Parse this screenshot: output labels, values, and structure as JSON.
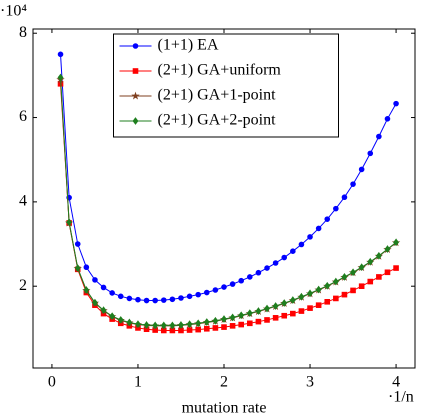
{
  "chart_data": {
    "type": "line",
    "x": [
      0.1,
      0.2,
      0.3,
      0.4,
      0.5,
      0.6,
      0.7,
      0.8,
      0.9,
      1.0,
      1.1,
      1.2,
      1.3,
      1.4,
      1.5,
      1.6,
      1.7,
      1.8,
      1.9,
      2.0,
      2.1,
      2.2,
      2.3,
      2.4,
      2.5,
      2.6,
      2.7,
      2.8,
      2.9,
      3.0,
      3.1,
      3.2,
      3.3,
      3.4,
      3.5,
      3.6,
      3.7,
      3.8,
      3.9,
      4.0
    ],
    "series": [
      {
        "name": "(1+1) EA",
        "color": "#0000ff",
        "marker": "circle",
        "values": [
          7.5,
          4.1,
          3.0,
          2.45,
          2.15,
          1.97,
          1.84,
          1.76,
          1.71,
          1.68,
          1.66,
          1.66,
          1.67,
          1.69,
          1.72,
          1.76,
          1.8,
          1.85,
          1.91,
          1.98,
          2.05,
          2.13,
          2.22,
          2.32,
          2.43,
          2.55,
          2.68,
          2.83,
          2.99,
          3.17,
          3.37,
          3.59,
          3.84,
          4.11,
          4.42,
          4.77,
          5.15,
          5.55,
          5.97,
          6.33
        ]
      },
      {
        "name": "(2+1) GA+uniform",
        "color": "#ff0000",
        "marker": "square",
        "values": [
          6.8,
          3.5,
          2.4,
          1.85,
          1.55,
          1.35,
          1.22,
          1.12,
          1.06,
          1.01,
          0.98,
          0.96,
          0.95,
          0.95,
          0.95,
          0.96,
          0.97,
          0.99,
          1.01,
          1.03,
          1.06,
          1.09,
          1.12,
          1.16,
          1.2,
          1.25,
          1.3,
          1.35,
          1.41,
          1.48,
          1.55,
          1.63,
          1.71,
          1.8,
          1.9,
          2.0,
          2.11,
          2.22,
          2.33,
          2.43
        ]
      },
      {
        "name": "(2+1) GA+1-point",
        "color": "#7f3f1f",
        "marker": "star",
        "values": [
          6.9,
          3.5,
          2.42,
          1.9,
          1.6,
          1.42,
          1.28,
          1.19,
          1.13,
          1.09,
          1.07,
          1.06,
          1.06,
          1.06,
          1.07,
          1.09,
          1.11,
          1.14,
          1.17,
          1.21,
          1.25,
          1.3,
          1.35,
          1.4,
          1.46,
          1.52,
          1.59,
          1.66,
          1.74,
          1.82,
          1.91,
          2.0,
          2.1,
          2.21,
          2.32,
          2.44,
          2.57,
          2.71,
          2.87,
          3.03
        ]
      },
      {
        "name": "(2+1) GA+2-point",
        "color": "#1f7f1f",
        "marker": "diamond",
        "values": [
          6.95,
          3.52,
          2.43,
          1.91,
          1.61,
          1.43,
          1.29,
          1.2,
          1.14,
          1.1,
          1.08,
          1.07,
          1.07,
          1.07,
          1.08,
          1.1,
          1.12,
          1.15,
          1.18,
          1.22,
          1.26,
          1.31,
          1.36,
          1.41,
          1.47,
          1.53,
          1.6,
          1.67,
          1.75,
          1.83,
          1.92,
          2.01,
          2.11,
          2.22,
          2.33,
          2.45,
          2.58,
          2.72,
          2.88,
          3.04
        ]
      }
    ],
    "xlabel": "mutation rate",
    "x_scale_label": "·1/n",
    "y_scale_label": "·10⁴",
    "xlim": [
      -0.22,
      4.22
    ],
    "ylim": [
      0.06,
      8.1
    ],
    "xticks": [
      0,
      1,
      2,
      3,
      4
    ],
    "yticks": [
      2,
      4,
      6,
      8
    ],
    "legend": "top-center"
  }
}
